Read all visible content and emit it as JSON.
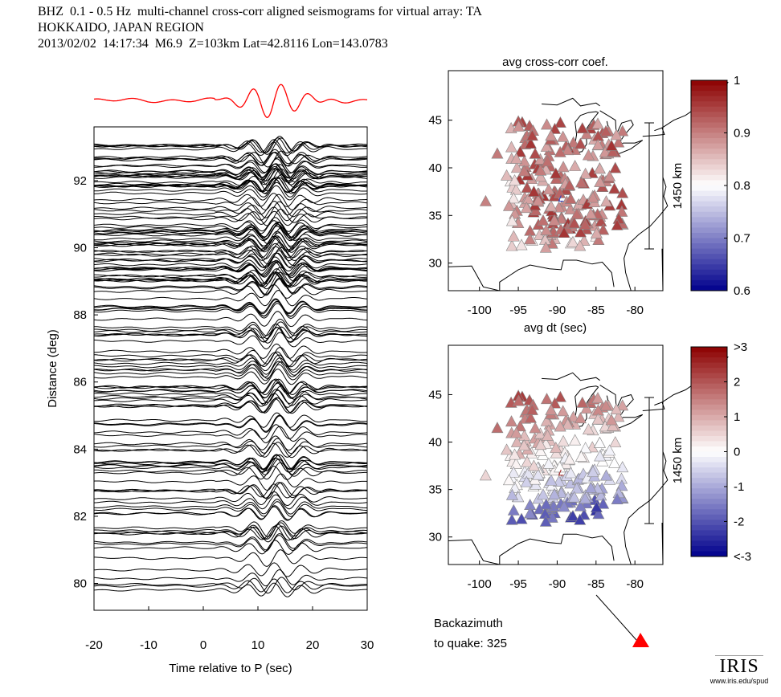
{
  "header": {
    "line1": "BHZ  0.1 - 0.5 Hz  multi-channel cross-corr aligned seismograms for virtual array: TA",
    "line2": "HOKKAIDO, JAPAN REGION",
    "line3": "2013/02/02  14:17:34  M6.9  Z=103km Lat=42.8116 Lon=143.0783"
  },
  "colors": {
    "trace": "#000000",
    "stack": "#ff0000",
    "marker": "#ff0000"
  },
  "chart_data": [
    {
      "type": "line",
      "name": "record-section",
      "xlabel": "Time relative to P (sec)",
      "ylabel": "Distance (deg)",
      "xlim": [
        -20,
        30
      ],
      "ylim": [
        79.2,
        93.6
      ],
      "xticks": [
        "-20",
        "-10",
        "0",
        "10",
        "20",
        "30"
      ],
      "yticks": [
        "80",
        "82",
        "84",
        "86",
        "88",
        "90",
        "92"
      ],
      "trace_count": 150
    },
    {
      "type": "scatter",
      "name": "cross-corr-map",
      "title": "avg cross-corr coef.",
      "xlim": [
        -104,
        -76.4
      ],
      "ylim": [
        27.1,
        50.2
      ],
      "xticks": [
        "-100",
        "-95",
        "-90",
        "-85",
        "-80"
      ],
      "yticks": [
        "30",
        "35",
        "40",
        "45"
      ],
      "scale_bar": "1450 km",
      "colorbar": {
        "range": [
          0.6,
          1.0
        ],
        "ticks": [
          "1",
          "0.9",
          "0.8",
          "0.7",
          "0.6"
        ]
      }
    },
    {
      "type": "scatter",
      "name": "dt-map",
      "title": "avg dt (sec)",
      "xlim": [
        -104,
        -76.4
      ],
      "ylim": [
        27.1,
        50.2
      ],
      "xticks": [
        "-100",
        "-95",
        "-90",
        "-85",
        "-80"
      ],
      "yticks": [
        "30",
        "35",
        "40",
        "45"
      ],
      "scale_bar": "1450 km",
      "colorbar": {
        "range": [
          -3,
          3
        ],
        "ticks": [
          ">3",
          "2",
          "1",
          "0",
          "-1",
          "-2",
          "<-3"
        ]
      }
    }
  ],
  "backazimuth": {
    "label_line1": "Backazimuth",
    "label_line2": "to quake:  325"
  },
  "logo": {
    "name": "IRIS",
    "url_text": "www.iris.edu/spud"
  }
}
